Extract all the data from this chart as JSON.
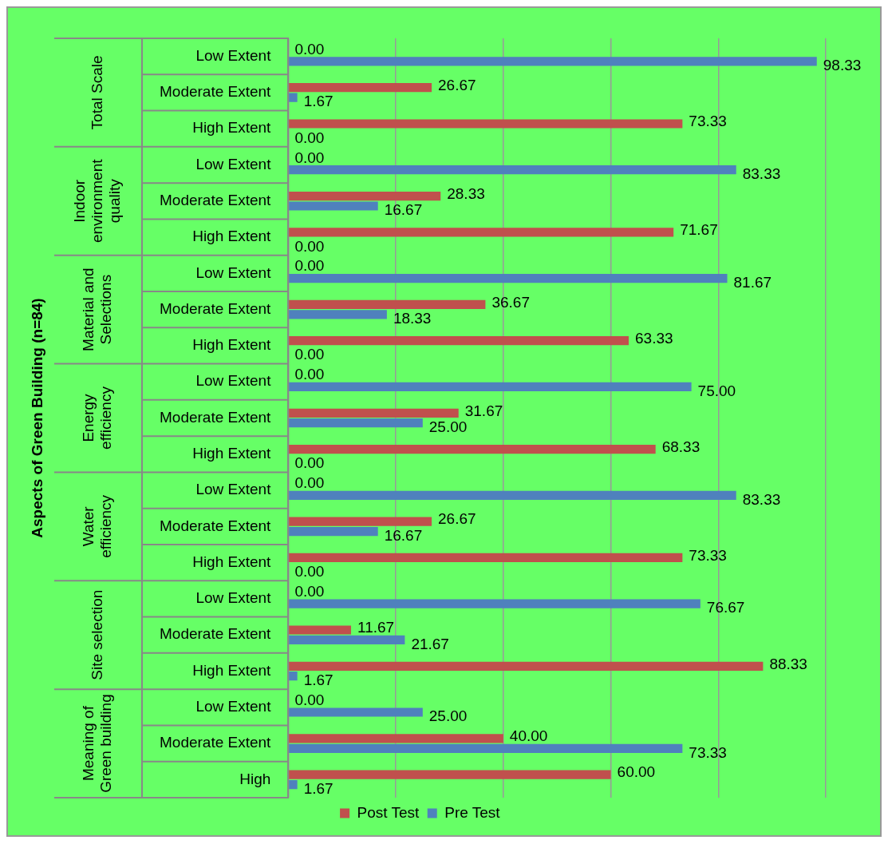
{
  "chart_data": {
    "type": "bar",
    "orientation": "horizontal",
    "categories": [
      "Low Extent",
      "Moderate Extent",
      "High Extent",
      "Low Extent",
      "Moderate Extent",
      "High Extent",
      "Low Extent",
      "Moderate Extent",
      "High Extent",
      "Low Extent",
      "Moderate Extent",
      "High Extent",
      "Low Extent",
      "Moderate Extent",
      "High Extent",
      "Low Extent",
      "Moderate Extent",
      "High Extent",
      "Low Extent",
      "Moderate Extent",
      "High"
    ],
    "annotations": [
      "Aspects of Green Building (n=84)",
      "Total Scale",
      "Indoor environment quality",
      "Material and Selections",
      "Energy efficiency",
      "Water efficiency",
      "Site selection",
      "Meaning of Green building"
    ],
    "series": [
      {
        "name": "Post Test",
        "color": "#c0504d",
        "values": [
          0,
          26.67,
          73.33,
          0,
          28.33,
          71.67,
          0,
          36.67,
          63.33,
          0,
          31.67,
          68.33,
          0,
          26.67,
          73.33,
          0,
          11.67,
          88.33,
          0,
          40,
          60
        ],
        "value_labels": [
          "0.00",
          "26.67",
          "73.33",
          "0.00",
          "28.33",
          "71.67",
          "0.00",
          "36.67",
          "63.33",
          "0.00",
          "31.67",
          "68.33",
          "0.00",
          "26.67",
          "73.33",
          "0.00",
          "11.67",
          "88.33",
          "0.00",
          "40.00",
          "60.00"
        ]
      },
      {
        "name": "Pre Test",
        "color": "#4f81bd",
        "values": [
          98.33,
          1.67,
          0,
          83.33,
          16.67,
          0,
          81.67,
          18.33,
          0,
          75,
          25,
          0,
          83.33,
          16.67,
          0,
          76.67,
          21.67,
          1.67,
          25,
          73.33,
          1.67
        ],
        "value_labels": [
          "98.33",
          "1.67",
          "0.00",
          "83.33",
          "16.67",
          "0.00",
          "81.67",
          "18.33",
          "0.00",
          "75.00",
          "25.00",
          "0.00",
          "83.33",
          "16.67",
          "0.00",
          "76.67",
          "21.67",
          "1.67",
          "25.00",
          "73.33",
          "1.67"
        ]
      }
    ],
    "xlim": [
      0,
      100
    ],
    "xticks": [
      {
        "value": 0,
        "label": null
      },
      {
        "value": 20,
        "label": null
      },
      {
        "value": 40,
        "label": null
      },
      {
        "value": 60,
        "label": null
      },
      {
        "value": 80,
        "label": null
      },
      {
        "value": 100,
        "label": null
      }
    ],
    "grid": "x",
    "tick_labels": "y",
    "legend": "bottom"
  }
}
